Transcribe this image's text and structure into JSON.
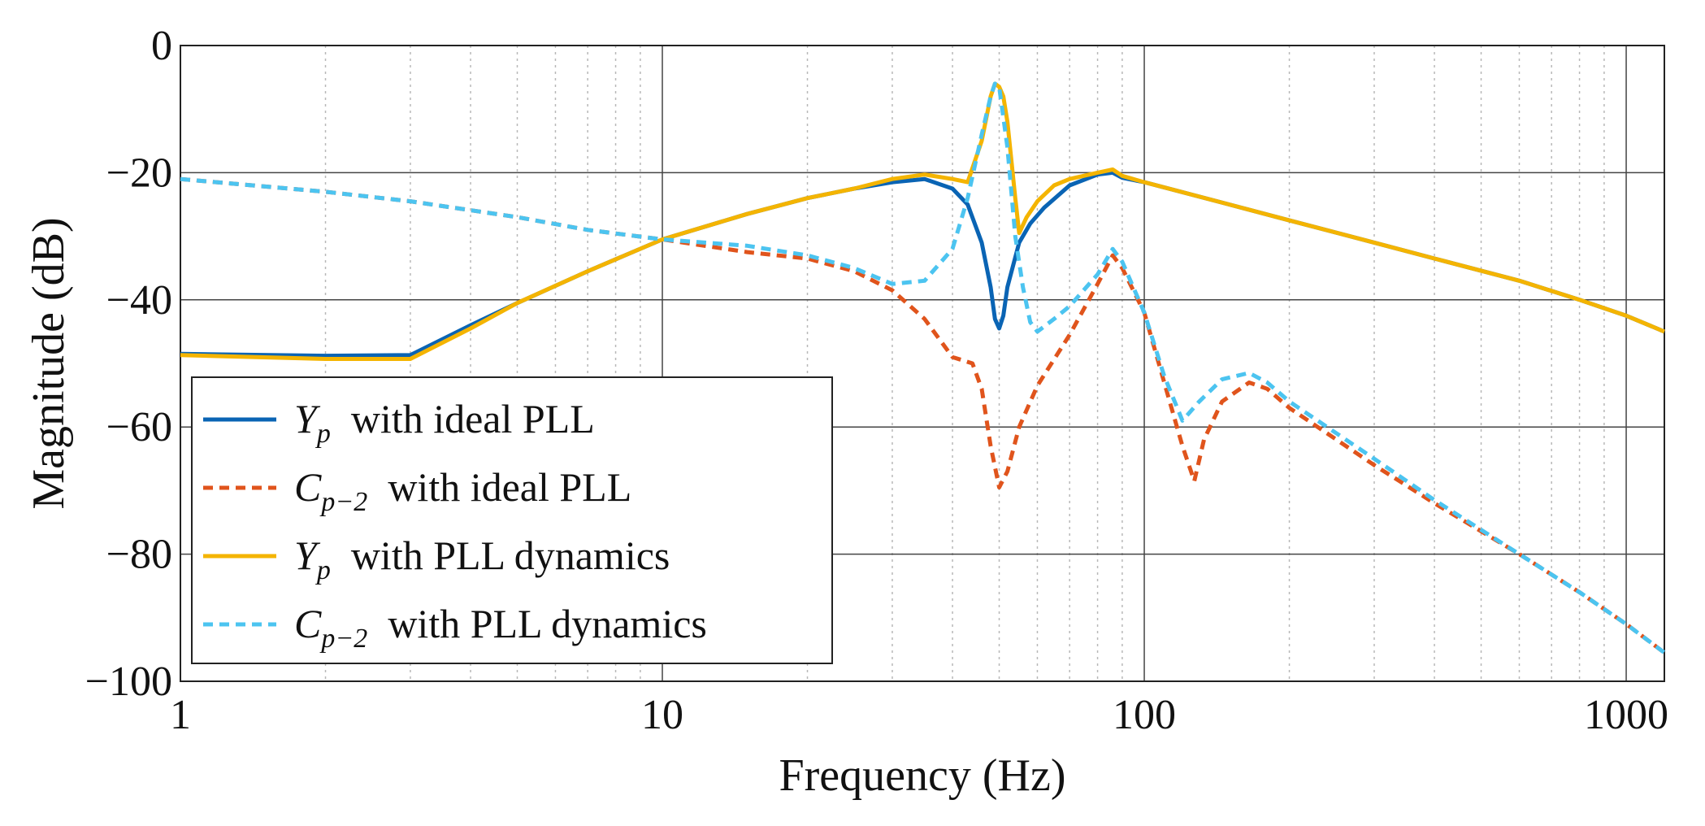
{
  "chart_data": {
    "type": "line",
    "title": "",
    "xlabel": "Frequency (Hz)",
    "ylabel": "Magnitude (dB)",
    "xscale": "log",
    "xlim": [
      1,
      1200
    ],
    "ylim": [
      -100,
      0
    ],
    "grid": true,
    "legend_location": "lower-left",
    "x_ticks": [
      {
        "value": 1,
        "label": "1"
      },
      {
        "value": 10,
        "label": "10"
      },
      {
        "value": 100,
        "label": "100"
      },
      {
        "value": 1000,
        "label": "1000"
      }
    ],
    "y_ticks": [
      {
        "value": 0,
        "label": "0"
      },
      {
        "value": -20,
        "label": "−20"
      },
      {
        "value": -40,
        "label": "−40"
      },
      {
        "value": -60,
        "label": "−60"
      },
      {
        "value": -80,
        "label": "−80"
      },
      {
        "value": -100,
        "label": "−100"
      }
    ],
    "series": [
      {
        "name": "Yp with ideal PLL",
        "symbol": "Y",
        "subscript": "p",
        "text": "with ideal PLL",
        "color": "#0a64b4",
        "dash": "solid",
        "points": [
          [
            1,
            -48.5
          ],
          [
            2,
            -48.8
          ],
          [
            3,
            -48.7
          ],
          [
            4,
            -44.0
          ],
          [
            5,
            -40.5
          ],
          [
            7,
            -35.5
          ],
          [
            10,
            -30.5
          ],
          [
            15,
            -26.5
          ],
          [
            20,
            -24.0
          ],
          [
            25,
            -22.5
          ],
          [
            30,
            -21.5
          ],
          [
            35,
            -21.0
          ],
          [
            40,
            -22.5
          ],
          [
            43,
            -25.0
          ],
          [
            46,
            -31.0
          ],
          [
            48,
            -38.0
          ],
          [
            49,
            -43.0
          ],
          [
            50,
            -44.5
          ],
          [
            51,
            -42.5
          ],
          [
            52,
            -38.0
          ],
          [
            55,
            -31.0
          ],
          [
            58,
            -28.0
          ],
          [
            62,
            -25.5
          ],
          [
            70,
            -22.0
          ],
          [
            80,
            -20.3
          ],
          [
            86,
            -20.0
          ],
          [
            90,
            -20.8
          ],
          [
            100,
            -21.5
          ],
          [
            150,
            -25.0
          ],
          [
            200,
            -27.5
          ],
          [
            300,
            -31.0
          ],
          [
            400,
            -33.5
          ],
          [
            600,
            -37.0
          ],
          [
            800,
            -40.0
          ],
          [
            1000,
            -42.5
          ],
          [
            1200,
            -45.0
          ]
        ]
      },
      {
        "name": "Cp-2 with ideal PLL",
        "symbol": "C",
        "subscript": "p−2",
        "text": "with ideal PLL",
        "color": "#e0541c",
        "dash": "dashed",
        "points": [
          [
            1,
            -21.0
          ],
          [
            2,
            -23.0
          ],
          [
            3,
            -24.5
          ],
          [
            5,
            -27.0
          ],
          [
            7,
            -29.0
          ],
          [
            10,
            -30.5
          ],
          [
            15,
            -32.5
          ],
          [
            20,
            -33.5
          ],
          [
            25,
            -35.5
          ],
          [
            30,
            -38.5
          ],
          [
            35,
            -43.0
          ],
          [
            40,
            -49.0
          ],
          [
            44,
            -50.0
          ],
          [
            46,
            -54.0
          ],
          [
            48,
            -63.0
          ],
          [
            50,
            -69.5
          ],
          [
            52,
            -67.0
          ],
          [
            55,
            -60.0
          ],
          [
            60,
            -53.5
          ],
          [
            70,
            -45.5
          ],
          [
            80,
            -37.5
          ],
          [
            86,
            -33.0
          ],
          [
            90,
            -35.0
          ],
          [
            100,
            -42.0
          ],
          [
            110,
            -53.0
          ],
          [
            120,
            -63.0
          ],
          [
            127,
            -68.5
          ],
          [
            133,
            -62.0
          ],
          [
            145,
            -56.0
          ],
          [
            165,
            -53.0
          ],
          [
            180,
            -54.0
          ],
          [
            200,
            -57.0
          ],
          [
            300,
            -66.0
          ],
          [
            400,
            -72.0
          ],
          [
            600,
            -80.0
          ],
          [
            800,
            -86.0
          ],
          [
            1000,
            -91.0
          ],
          [
            1200,
            -95.5
          ]
        ]
      },
      {
        "name": "Yp with PLL dynamics",
        "symbol": "Y",
        "subscript": "p",
        "text": "with PLL dynamics",
        "color": "#f4b400",
        "dash": "solid",
        "points": [
          [
            1,
            -48.7
          ],
          [
            2,
            -49.3
          ],
          [
            3,
            -49.3
          ],
          [
            4,
            -44.5
          ],
          [
            5,
            -40.5
          ],
          [
            7,
            -35.5
          ],
          [
            10,
            -30.5
          ],
          [
            15,
            -26.5
          ],
          [
            20,
            -24.0
          ],
          [
            25,
            -22.5
          ],
          [
            30,
            -21.0
          ],
          [
            35,
            -20.3
          ],
          [
            40,
            -21.0
          ],
          [
            43,
            -21.5
          ],
          [
            46,
            -15.0
          ],
          [
            48,
            -8.0
          ],
          [
            49,
            -6.0
          ],
          [
            50,
            -6.5
          ],
          [
            51,
            -8.0
          ],
          [
            52,
            -12.0
          ],
          [
            54,
            -24.0
          ],
          [
            55,
            -29.5
          ],
          [
            57,
            -27.0
          ],
          [
            60,
            -24.5
          ],
          [
            65,
            -22.0
          ],
          [
            70,
            -21.0
          ],
          [
            80,
            -20.0
          ],
          [
            86,
            -19.5
          ],
          [
            90,
            -20.5
          ],
          [
            100,
            -21.5
          ],
          [
            150,
            -25.0
          ],
          [
            200,
            -27.5
          ],
          [
            300,
            -31.0
          ],
          [
            400,
            -33.5
          ],
          [
            600,
            -37.0
          ],
          [
            800,
            -40.0
          ],
          [
            1000,
            -42.5
          ],
          [
            1200,
            -45.0
          ]
        ]
      },
      {
        "name": "Cp-2 with PLL dynamics",
        "symbol": "C",
        "subscript": "p−2",
        "text": "with PLL dynamics",
        "color": "#4cc4f0",
        "dash": "dashed",
        "points": [
          [
            1,
            -21.0
          ],
          [
            2,
            -23.0
          ],
          [
            3,
            -24.5
          ],
          [
            5,
            -27.0
          ],
          [
            7,
            -29.0
          ],
          [
            10,
            -30.5
          ],
          [
            15,
            -31.5
          ],
          [
            20,
            -33.0
          ],
          [
            25,
            -35.0
          ],
          [
            30,
            -37.5
          ],
          [
            35,
            -37.0
          ],
          [
            40,
            -32.0
          ],
          [
            43,
            -24.0
          ],
          [
            46,
            -14.0
          ],
          [
            48,
            -8.0
          ],
          [
            49,
            -6.0
          ],
          [
            50,
            -6.5
          ],
          [
            52,
            -16.0
          ],
          [
            54,
            -30.0
          ],
          [
            56,
            -38.0
          ],
          [
            58,
            -43.5
          ],
          [
            60,
            -45.0
          ],
          [
            65,
            -43.0
          ],
          [
            70,
            -41.0
          ],
          [
            80,
            -36.0
          ],
          [
            86,
            -32.0
          ],
          [
            90,
            -34.0
          ],
          [
            100,
            -42.0
          ],
          [
            110,
            -52.0
          ],
          [
            120,
            -59.0
          ],
          [
            130,
            -56.0
          ],
          [
            145,
            -52.5
          ],
          [
            165,
            -51.5
          ],
          [
            180,
            -53.0
          ],
          [
            200,
            -56.0
          ],
          [
            300,
            -65.0
          ],
          [
            400,
            -71.5
          ],
          [
            600,
            -80.0
          ],
          [
            800,
            -86.0
          ],
          [
            1000,
            -91.0
          ],
          [
            1200,
            -95.5
          ]
        ]
      }
    ]
  }
}
